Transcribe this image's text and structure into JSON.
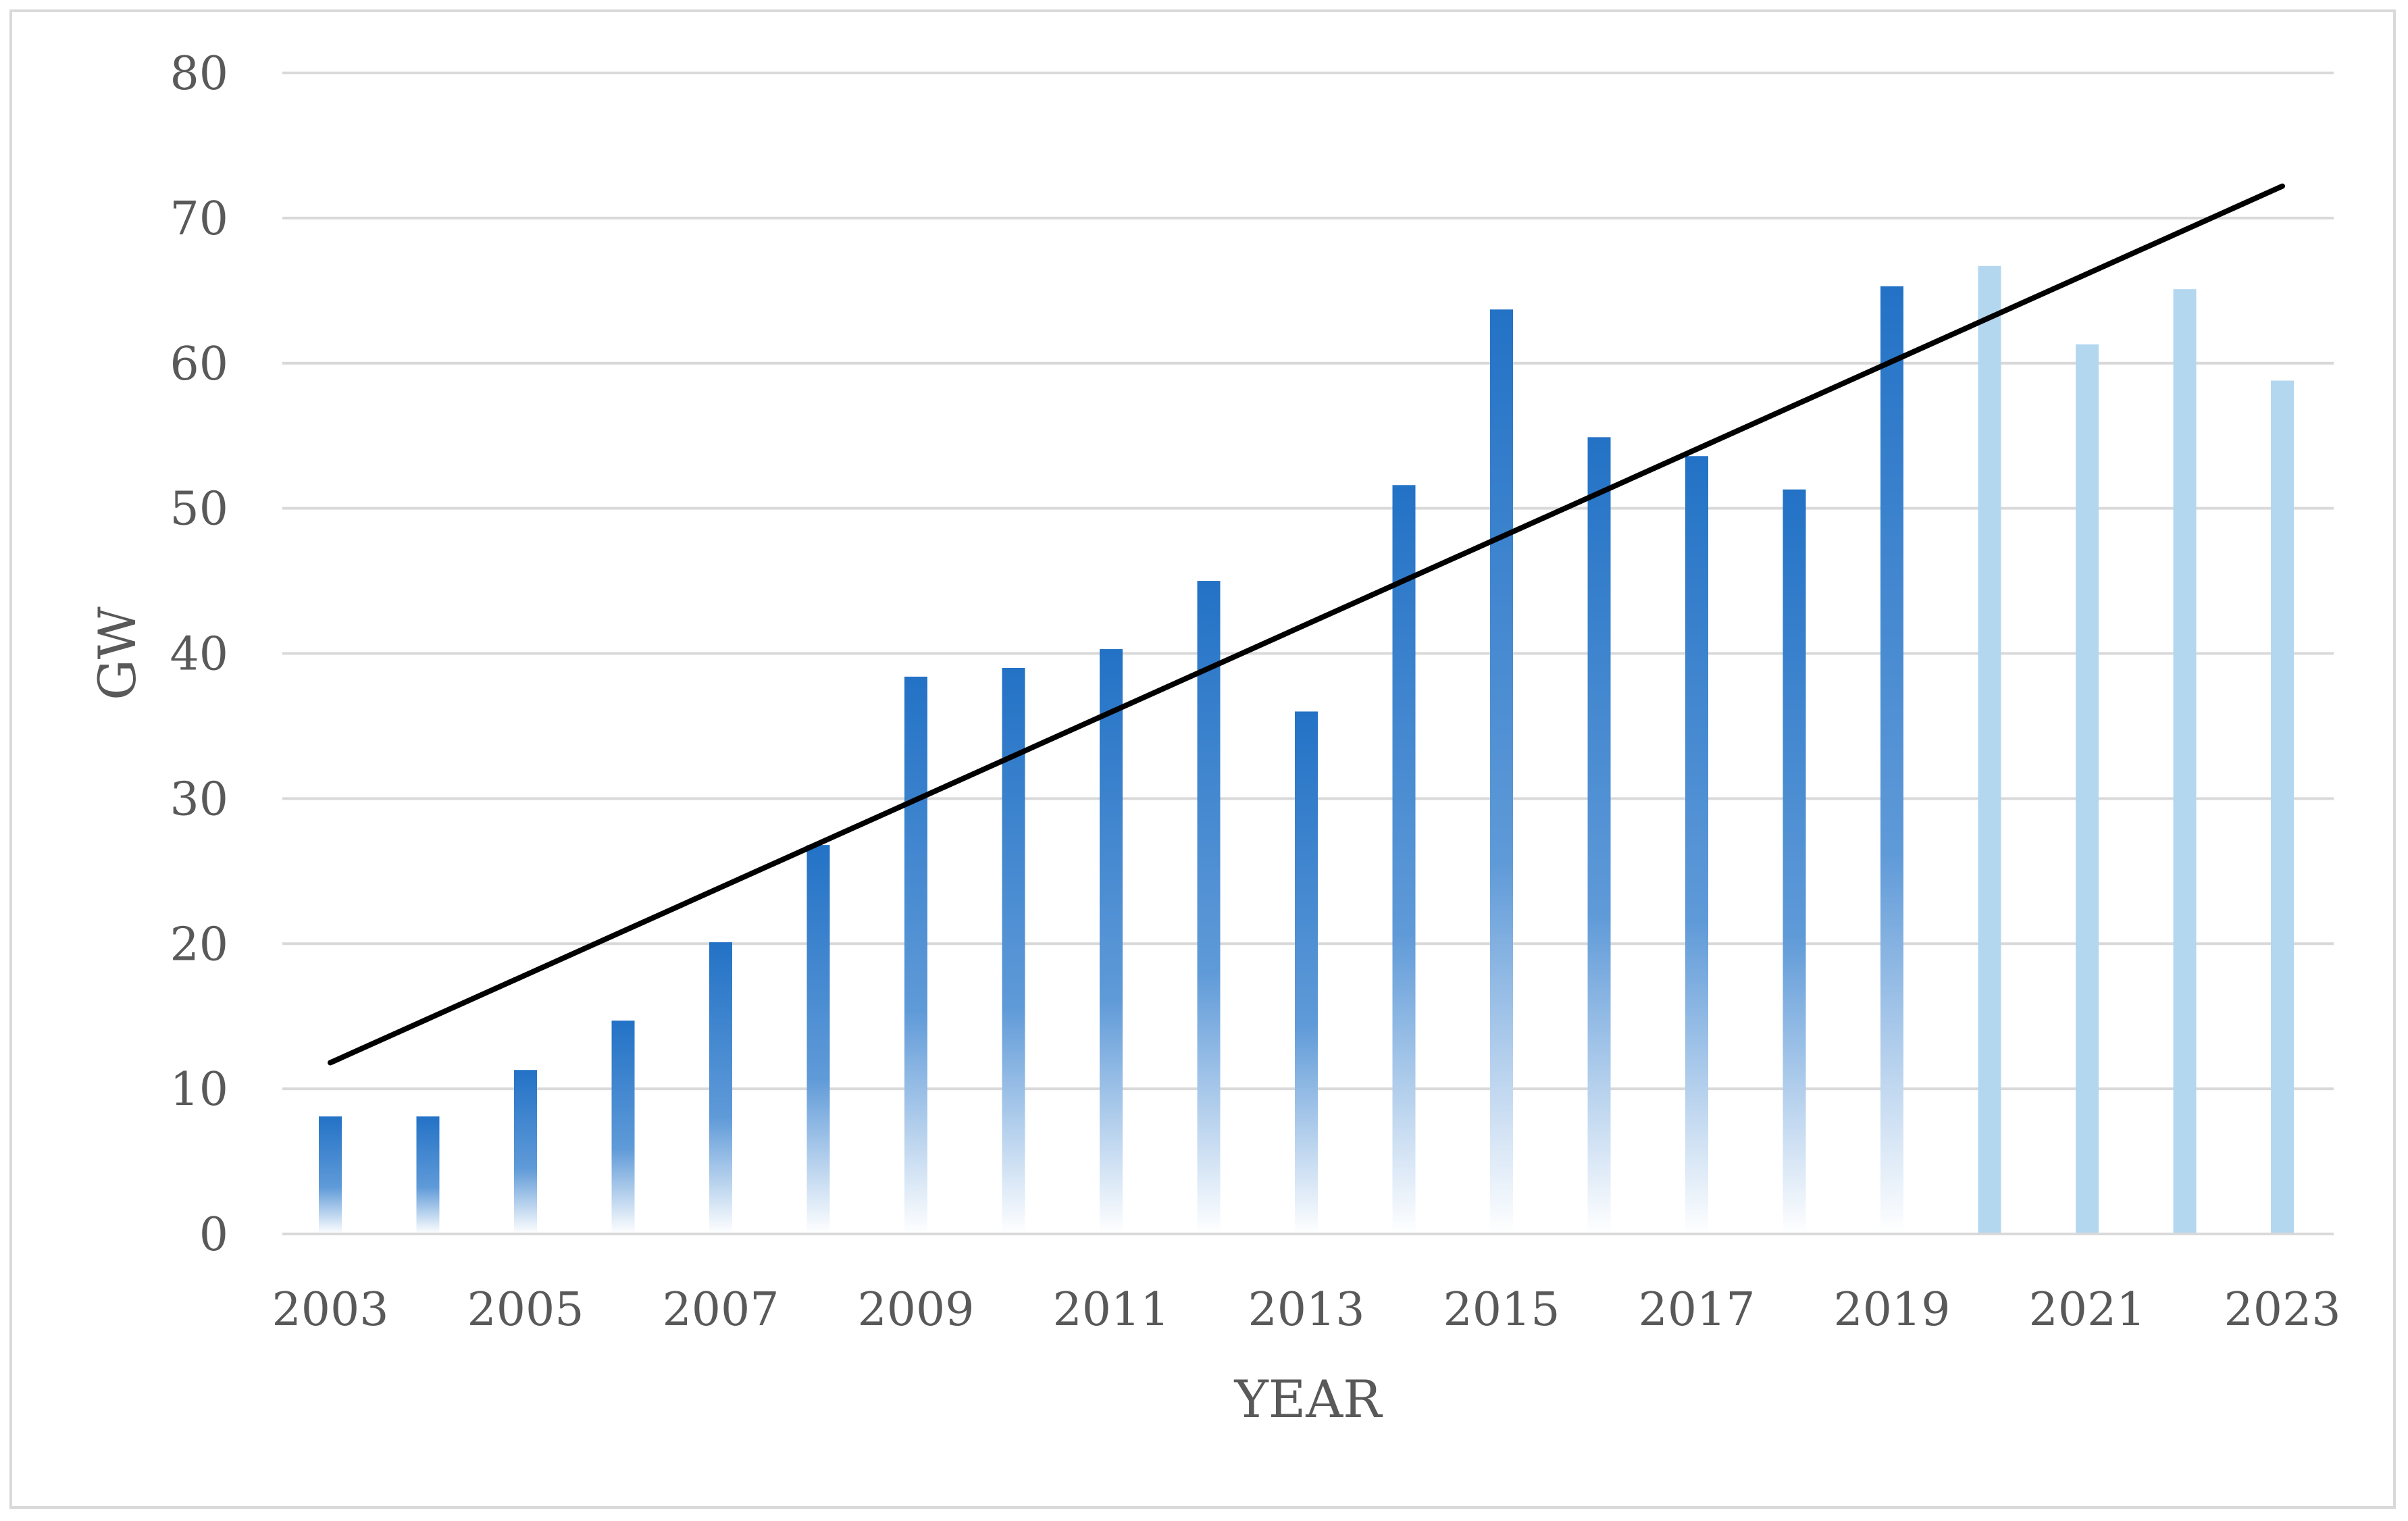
{
  "chart_data": {
    "type": "bar",
    "title": "",
    "xlabel": "YEAR",
    "ylabel": "GW",
    "ylim": [
      0,
      80
    ],
    "yticks": [
      "0",
      "10",
      "20",
      "30",
      "40",
      "50",
      "60",
      "70",
      "80"
    ],
    "x_tick_labels": [
      "2003",
      "2005",
      "2007",
      "2009",
      "2011",
      "2013",
      "2015",
      "2017",
      "2019",
      "2021",
      "2023"
    ],
    "categories": [
      "2003",
      "2004",
      "2005",
      "2006",
      "2007",
      "2008",
      "2009",
      "2010",
      "2011",
      "2012",
      "2013",
      "2014",
      "2015",
      "2016",
      "2017",
      "2018",
      "2019",
      "2020",
      "2021",
      "2022",
      "2023"
    ],
    "values": [
      8.1,
      8.1,
      11.3,
      14.7,
      20.1,
      26.8,
      38.4,
      39.0,
      40.3,
      45.0,
      36.0,
      51.6,
      63.7,
      54.9,
      53.6,
      51.3,
      65.3,
      66.7,
      61.3,
      65.1,
      58.8
    ],
    "bar_style": [
      "gradient",
      "gradient",
      "gradient",
      "gradient",
      "gradient",
      "gradient",
      "gradient",
      "gradient",
      "gradient",
      "gradient",
      "gradient",
      "gradient",
      "gradient",
      "gradient",
      "gradient",
      "gradient",
      "gradient",
      "light",
      "light",
      "light",
      "light"
    ],
    "trendline": {
      "type": "linear",
      "start": {
        "x": "2003",
        "y": 11.8
      },
      "end": {
        "x": "2023",
        "y": 72.2
      },
      "color": "#000000"
    },
    "grid": true,
    "legend": "none",
    "colors": {
      "bar_top": "#2372c6",
      "bar_light": "#b4d7f0",
      "grid": "#d9d9d9",
      "axis_text": "#595959",
      "trend": "#000000"
    }
  }
}
